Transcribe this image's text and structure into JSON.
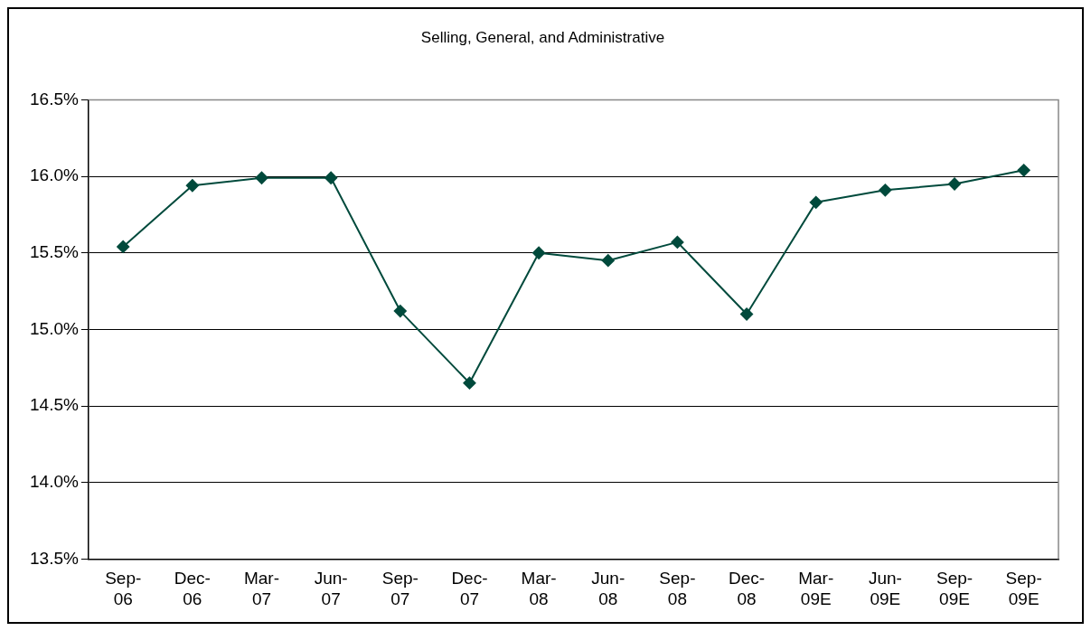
{
  "chart_data": {
    "type": "line",
    "title": "Selling, General, and Administrative",
    "categories": [
      "Sep-06",
      "Dec-06",
      "Mar-07",
      "Jun-07",
      "Sep-07",
      "Dec-07",
      "Mar-08",
      "Jun-08",
      "Sep-08",
      "Dec-08",
      "Mar-09E",
      "Jun-09E",
      "Sep-09E",
      "Sep-09E"
    ],
    "series": [
      {
        "color": "#004a3c",
        "values": [
          15.54,
          15.94,
          15.99,
          15.99,
          15.12,
          14.65,
          15.5,
          15.45,
          15.57,
          15.1,
          15.83,
          15.91,
          15.95,
          16.04
        ]
      }
    ],
    "ylim": [
      13.5,
      16.5
    ],
    "yticks": [
      {
        "value": 13.5,
        "label": "13.5%"
      },
      {
        "value": 14.0,
        "label": "14.0%"
      },
      {
        "value": 14.5,
        "label": "14.5%"
      },
      {
        "value": 15.0,
        "label": "15.0%"
      },
      {
        "value": 15.5,
        "label": "15.5%"
      },
      {
        "value": 16.0,
        "label": "16.0%"
      },
      {
        "value": 16.5,
        "label": "16.5%"
      }
    ],
    "grid": "y",
    "legend": false,
    "marker": "diamond",
    "line_style": "solid"
  }
}
